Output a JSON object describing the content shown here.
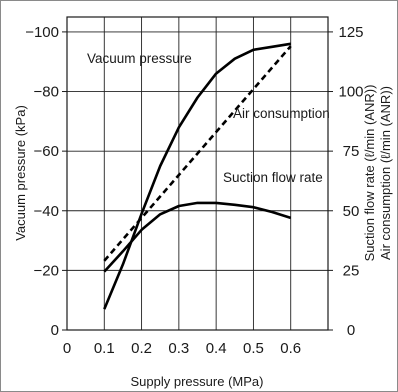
{
  "chart_data": {
    "type": "line",
    "xlabel": "Supply pressure (MPa)",
    "ylabel_left": "Vacuum pressure (kPa)",
    "ylabel_right": [
      "Suction flow rate (ℓ/min (ANR))",
      "Air consumption (ℓ/min (ANR))"
    ],
    "x_ticks": [
      "0",
      "0.1",
      "0.2",
      "0.3",
      "0.4",
      "0.5",
      "0.6"
    ],
    "x_tick_values": [
      0,
      0.1,
      0.2,
      0.3,
      0.4,
      0.5,
      0.6
    ],
    "left_ticks": [
      "0",
      "−20",
      "−40",
      "−60",
      "−80",
      "−100"
    ],
    "left_tick_values": [
      0,
      -20,
      -40,
      -60,
      -80,
      -100
    ],
    "right_ticks": [
      "0",
      "25",
      "50",
      "75",
      "100",
      "125"
    ],
    "right_tick_values": [
      0,
      25,
      50,
      75,
      100,
      125
    ],
    "xlim": [
      0,
      0.7
    ],
    "ylim_left": [
      0,
      -105
    ],
    "ylim_right": [
      0,
      131.25
    ],
    "grid": true,
    "series": [
      {
        "name": "Vacuum pressure",
        "axis": "left",
        "style": "solid",
        "x": [
          0.1,
          0.15,
          0.2,
          0.25,
          0.3,
          0.35,
          0.375,
          0.4,
          0.45,
          0.5,
          0.55,
          0.6
        ],
        "y": [
          -7,
          -22,
          -39,
          -55,
          -68,
          -78,
          -82,
          -86,
          -91,
          -94,
          -95,
          -96
        ]
      },
      {
        "name": "Air consumption",
        "axis": "right",
        "style": "dashed",
        "x": [
          0.1,
          0.6
        ],
        "y": [
          29,
          119
        ]
      },
      {
        "name": "Suction flow rate",
        "axis": "right",
        "style": "solid",
        "x": [
          0.1,
          0.15,
          0.2,
          0.25,
          0.3,
          0.35,
          0.4,
          0.45,
          0.5,
          0.55,
          0.6
        ],
        "y": [
          24.5,
          33,
          42,
          48.5,
          52,
          53.3,
          53.3,
          52.5,
          51.5,
          49.5,
          47
        ]
      }
    ]
  }
}
